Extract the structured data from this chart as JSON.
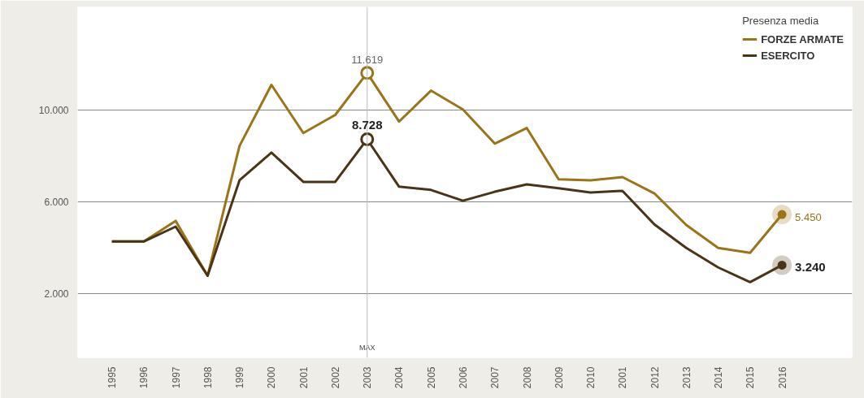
{
  "chart_data": {
    "type": "line",
    "legend_title": "Presenza media",
    "legend": "top right",
    "grid": "y",
    "categories": [
      "1995",
      "1996",
      "1997",
      "1998",
      "1999",
      "2000",
      "2001",
      "2002",
      "2003",
      "2004",
      "2005",
      "2006",
      "2007",
      "2008",
      "2009",
      "2010",
      "2001",
      "2012",
      "2013",
      "2014",
      "2015",
      "2016"
    ],
    "ylim": [
      -800,
      14500
    ],
    "yticks": [
      {
        "value": 2000,
        "label": "2.000"
      },
      {
        "value": 6000,
        "label": "6.000"
      },
      {
        "value": 10000,
        "label": "10.000"
      }
    ],
    "ref_lines": [
      {
        "axis": "x",
        "value": "2003",
        "label": "MAX",
        "color": "#bbbbbb"
      }
    ],
    "series": [
      {
        "name": "FORZE ARMATE",
        "color": "#9a7416",
        "values": [
          4270,
          4270,
          5170,
          2780,
          8440,
          11100,
          9000,
          9790,
          11619,
          9500,
          10850,
          10030,
          8540,
          9220,
          6980,
          6940,
          7080,
          6370,
          4990,
          3990,
          3780,
          5450
        ],
        "value_labels": [
          null,
          null,
          null,
          null,
          null,
          null,
          null,
          null,
          "11.619",
          null,
          null,
          null,
          null,
          null,
          null,
          null,
          null,
          null,
          null,
          null,
          null,
          "5.450"
        ]
      },
      {
        "name": "ESERCITO",
        "color": "#4a3418",
        "values": [
          4270,
          4270,
          4920,
          2780,
          6940,
          8150,
          6870,
          6870,
          8728,
          6660,
          6520,
          6050,
          6440,
          6760,
          6590,
          6410,
          6480,
          5020,
          3990,
          3140,
          2500,
          3240
        ],
        "value_labels": [
          null,
          null,
          null,
          null,
          null,
          null,
          null,
          null,
          "8.728",
          null,
          null,
          null,
          null,
          null,
          null,
          null,
          null,
          null,
          null,
          null,
          null,
          "3.240"
        ]
      }
    ]
  }
}
